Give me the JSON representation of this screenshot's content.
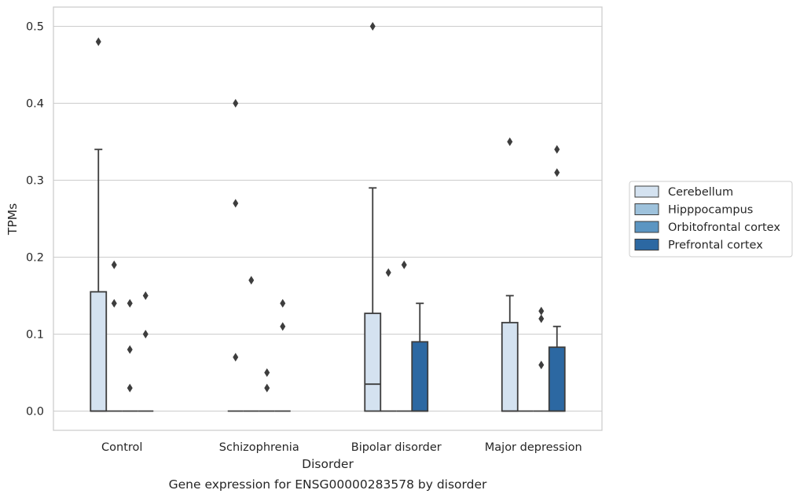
{
  "chart_data": {
    "type": "box",
    "xlabel": "Disorder",
    "ylabel": "TPMs",
    "caption": "Gene expression for ENSG00000283578 by disorder",
    "categories": [
      "Control",
      "Schizophrenia",
      "Bipolar disorder",
      "Major depression"
    ],
    "ylim": [
      -0.025,
      0.525
    ],
    "yticks": [
      "0.0",
      "0.1",
      "0.2",
      "0.3",
      "0.4",
      "0.5"
    ],
    "grid": "horizontal",
    "legend_position": "right",
    "series": [
      {
        "name": "Cerebellum",
        "color": "#d4e2f0",
        "boxes": [
          {
            "q1": 0,
            "median": 0,
            "q3": 0.155,
            "whisker_low": 0,
            "whisker_high": 0.34,
            "outliers": [
              0.48
            ]
          },
          {
            "q1": 0,
            "median": 0,
            "q3": 0,
            "whisker_low": 0,
            "whisker_high": 0,
            "outliers": [
              0.07,
              0.27,
              0.4
            ]
          },
          {
            "q1": 0,
            "median": 0.035,
            "q3": 0.127,
            "whisker_low": 0,
            "whisker_high": 0.29,
            "outliers": [
              0.5
            ]
          },
          {
            "q1": 0,
            "median": 0,
            "q3": 0.115,
            "whisker_low": 0,
            "whisker_high": 0.15,
            "outliers": [
              0.35
            ]
          }
        ]
      },
      {
        "name": "Hipppocampus",
        "color": "#9ec2dc",
        "boxes": [
          {
            "q1": 0,
            "median": 0,
            "q3": 0,
            "whisker_low": 0,
            "whisker_high": 0,
            "outliers": [
              0.14,
              0.19
            ]
          },
          {
            "q1": 0,
            "median": 0,
            "q3": 0,
            "whisker_low": 0,
            "whisker_high": 0,
            "outliers": [
              0.17
            ]
          },
          {
            "q1": 0,
            "median": 0,
            "q3": 0,
            "whisker_low": 0,
            "whisker_high": 0,
            "outliers": [
              0.18
            ]
          },
          {
            "q1": 0,
            "median": 0,
            "q3": 0,
            "whisker_low": 0,
            "whisker_high": 0,
            "outliers": []
          }
        ]
      },
      {
        "name": "Orbitofrontal cortex",
        "color": "#5b95c2",
        "boxes": [
          {
            "q1": 0,
            "median": 0,
            "q3": 0,
            "whisker_low": 0,
            "whisker_high": 0,
            "outliers": [
              0.03,
              0.08,
              0.14
            ]
          },
          {
            "q1": 0,
            "median": 0,
            "q3": 0,
            "whisker_low": 0,
            "whisker_high": 0,
            "outliers": [
              0.03,
              0.05
            ]
          },
          {
            "q1": 0,
            "median": 0,
            "q3": 0,
            "whisker_low": 0,
            "whisker_high": 0,
            "outliers": [
              0.19
            ]
          },
          {
            "q1": 0,
            "median": 0,
            "q3": 0,
            "whisker_low": 0,
            "whisker_high": 0,
            "outliers": [
              0.06,
              0.12,
              0.13
            ]
          }
        ]
      },
      {
        "name": "Prefrontal cortex",
        "color": "#2c68a2",
        "boxes": [
          {
            "q1": 0,
            "median": 0,
            "q3": 0,
            "whisker_low": 0,
            "whisker_high": 0,
            "outliers": [
              0.1,
              0.15
            ]
          },
          {
            "q1": 0,
            "median": 0,
            "q3": 0,
            "whisker_low": 0,
            "whisker_high": 0,
            "outliers": [
              0.11,
              0.14
            ]
          },
          {
            "q1": 0,
            "median": 0,
            "q3": 0.09,
            "whisker_low": 0,
            "whisker_high": 0.14,
            "outliers": []
          },
          {
            "q1": 0,
            "median": 0,
            "q3": 0.083,
            "whisker_low": 0,
            "whisker_high": 0.11,
            "outliers": [
              0.31,
              0.34
            ]
          }
        ]
      }
    ]
  }
}
